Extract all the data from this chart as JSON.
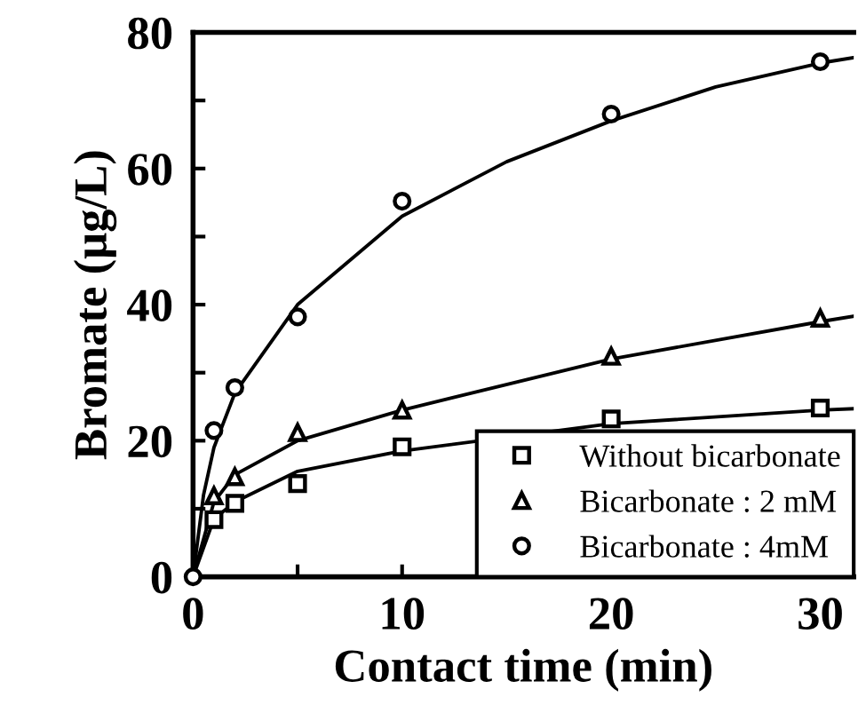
{
  "chart_data": {
    "type": "scatter",
    "xlabel": "Contact time (min)",
    "ylabel": "Bromate (μg/L)",
    "xlim": [
      0,
      31.6
    ],
    "ylim": [
      0,
      80
    ],
    "xticks": [
      0,
      {
        "value": 5,
        "label": null
      },
      10,
      {
        "value": 15,
        "label": null
      },
      20,
      {
        "value": 25,
        "label": null
      },
      30
    ],
    "yticks": [
      0,
      {
        "value": 10,
        "label": null
      },
      20,
      {
        "value": 30,
        "label": null
      },
      40,
      {
        "value": 50,
        "label": null
      },
      60,
      {
        "value": 70,
        "label": null
      },
      80
    ],
    "grid": false,
    "legend": "bottom right",
    "series": [
      {
        "name": "Without bicarbonate",
        "color": "#000000",
        "marker": "square",
        "x": [
          1,
          2,
          5,
          10,
          20,
          30
        ],
        "values": [
          8.4,
          10.8,
          13.7,
          19.1,
          23.2,
          24.8
        ]
      },
      {
        "name": "Bicarbonate : 2 mM",
        "color": "#000000",
        "marker": "triangle",
        "x": [
          1,
          2,
          5,
          10,
          20,
          30
        ],
        "values": [
          11.9,
          14.7,
          21.2,
          24.5,
          32.4,
          38.0
        ]
      },
      {
        "name": "Bicarbonate : 4mM",
        "color": "#000000",
        "marker": "circle",
        "x": [
          0,
          1,
          2,
          5,
          10,
          20,
          30
        ],
        "values": [
          0,
          21.5,
          27.8,
          38.2,
          55.2,
          68.0,
          75.7
        ]
      },
      {
        "type": "line",
        "color": "#000000",
        "x": [
          0,
          1,
          2,
          5,
          10,
          20,
          30,
          31.6
        ],
        "values": [
          0,
          8.5,
          11,
          15.5,
          18.5,
          22.5,
          24.5,
          24.7
        ]
      },
      {
        "type": "line",
        "color": "#000000",
        "x": [
          0,
          1,
          2,
          5,
          10,
          20,
          30,
          31.6
        ],
        "values": [
          0,
          11,
          15,
          20,
          24.5,
          32,
          37.5,
          38.3
        ]
      },
      {
        "type": "line",
        "color": "#000000",
        "x": [
          0,
          0.5,
          1,
          2,
          5,
          10,
          15,
          20,
          25,
          30,
          31.6
        ],
        "values": [
          0,
          12,
          19,
          27,
          40,
          53,
          61,
          67,
          72,
          75.5,
          76.3
        ]
      }
    ]
  }
}
